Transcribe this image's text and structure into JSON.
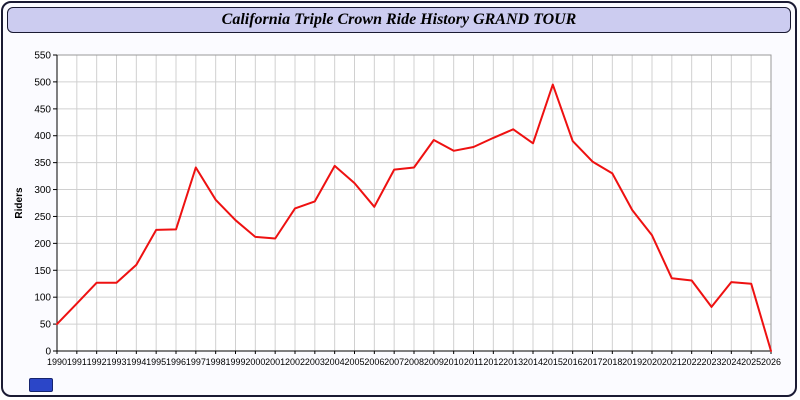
{
  "window": {
    "title": "California Triple Crown Ride History GRAND TOUR"
  },
  "chart_data": {
    "type": "line",
    "title": "California Triple Crown Ride History GRAND TOUR",
    "xlabel": "",
    "ylabel": "Riders",
    "ylim": [
      0,
      550
    ],
    "ytick_step": 50,
    "grid": true,
    "legend": "none",
    "line_color": "#ee1111",
    "x": [
      1990,
      1991,
      1992,
      1993,
      1994,
      1995,
      1996,
      1997,
      1998,
      1999,
      2000,
      2001,
      2002,
      2003,
      2004,
      2005,
      2006,
      2007,
      2008,
      2009,
      2010,
      2011,
      2012,
      2013,
      2014,
      2015,
      2016,
      2017,
      2018,
      2019,
      2020,
      2021,
      2022,
      2023,
      2024,
      2025,
      2026
    ],
    "values": [
      50,
      88,
      127,
      127,
      160,
      225,
      226,
      341,
      281,
      243,
      212,
      209,
      265,
      278,
      344,
      312,
      268,
      337,
      341,
      392,
      372,
      379,
      396,
      412,
      386,
      495,
      390,
      352,
      330,
      262,
      215,
      135,
      131,
      82,
      128,
      125,
      0
    ]
  }
}
